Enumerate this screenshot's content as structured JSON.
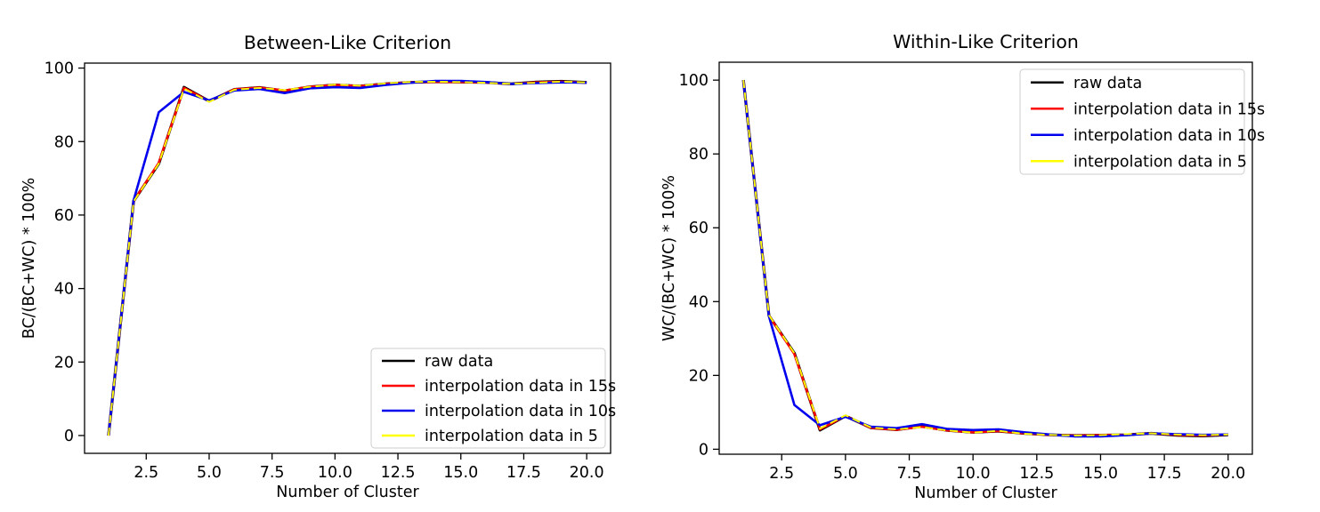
{
  "figure": {
    "background": "#ffffff",
    "text_color": "#000000",
    "spine_color": "#000000",
    "legend_border_color": "#cccccc",
    "legend_background": "#ffffff"
  },
  "chart_data": [
    {
      "type": "line",
      "title": "Between-Like Criterion",
      "xlabel": "Number of Cluster",
      "ylabel": "BC/(BC+WC) * 100%",
      "grid": false,
      "legend_position": "lower right",
      "x": [
        1,
        2,
        3,
        4,
        5,
        6,
        7,
        8,
        9,
        10,
        11,
        12,
        13,
        14,
        15,
        16,
        17,
        18,
        19,
        20
      ],
      "xlim": [
        0.05,
        20.95
      ],
      "ylim": [
        -4.85,
        101.35
      ],
      "xticks": [
        2.5,
        5.0,
        7.5,
        10.0,
        12.5,
        15.0,
        17.5,
        20.0
      ],
      "xtick_labels": [
        "2.5",
        "5.0",
        "7.5",
        "10.0",
        "12.5",
        "15.0",
        "17.5",
        "20.0"
      ],
      "yticks": [
        0,
        20,
        40,
        60,
        80,
        100
      ],
      "ytick_labels": [
        "0",
        "20",
        "40",
        "60",
        "80",
        "100"
      ],
      "series": [
        {
          "name": "raw data",
          "color": "#000000",
          "values": [
            0,
            63.8,
            74.0,
            94.8,
            91.0,
            94.2,
            94.7,
            93.8,
            94.9,
            95.4,
            95.1,
            95.7,
            96.1,
            96.3,
            96.2,
            96.1,
            95.7,
            96.2,
            96.4,
            96.1
          ]
        },
        {
          "name": "interpolation data in 15s",
          "color": "#ff0000",
          "values": [
            0,
            63.8,
            74.2,
            94.6,
            91.0,
            94.2,
            94.7,
            93.9,
            94.9,
            95.4,
            95.1,
            95.7,
            96.1,
            96.3,
            96.2,
            96.1,
            95.7,
            96.1,
            96.3,
            96.0
          ]
        },
        {
          "name": "interpolation data in 10s",
          "color": "#0000ee",
          "values": [
            0,
            64.0,
            88.0,
            93.5,
            91.2,
            93.9,
            94.3,
            93.2,
            94.5,
            94.8,
            94.6,
            95.4,
            96.0,
            96.5,
            96.5,
            96.2,
            95.7,
            95.9,
            96.1,
            96.0
          ]
        },
        {
          "name": "interpolation data in 5",
          "color": "#ffff00",
          "dash": [
            9,
            5
          ],
          "values": [
            0,
            63.7,
            74.0,
            94.4,
            90.8,
            94.1,
            94.6,
            94.0,
            94.9,
            95.5,
            95.2,
            95.8,
            96.2,
            96.3,
            96.2,
            96.0,
            95.7,
            96.0,
            96.3,
            96.1
          ]
        }
      ]
    },
    {
      "type": "line",
      "title": "Within-Like Criterion",
      "xlabel": "Number of Cluster",
      "ylabel": "WC/(BC+WC) * 100%",
      "grid": false,
      "legend_position": "upper right",
      "x": [
        1,
        2,
        3,
        4,
        5,
        6,
        7,
        8,
        9,
        10,
        11,
        12,
        13,
        14,
        15,
        16,
        17,
        18,
        19,
        20
      ],
      "xlim": [
        0.05,
        20.95
      ],
      "ylim": [
        -1.35,
        104.85
      ],
      "xticks": [
        2.5,
        5.0,
        7.5,
        10.0,
        12.5,
        15.0,
        17.5,
        20.0
      ],
      "xtick_labels": [
        "2.5",
        "5.0",
        "7.5",
        "10.0",
        "12.5",
        "15.0",
        "17.5",
        "20.0"
      ],
      "yticks": [
        0,
        20,
        40,
        60,
        80,
        100
      ],
      "ytick_labels": [
        "0",
        "20",
        "40",
        "60",
        "80",
        "100"
      ],
      "series": [
        {
          "name": "raw data",
          "color": "#000000",
          "values": [
            100,
            36.2,
            26.0,
            5.2,
            9.0,
            5.8,
            5.3,
            6.2,
            5.1,
            4.6,
            4.9,
            4.3,
            3.9,
            3.7,
            3.8,
            3.9,
            4.3,
            3.8,
            3.6,
            3.9
          ]
        },
        {
          "name": "interpolation data in 15s",
          "color": "#ff0000",
          "values": [
            100,
            36.2,
            25.8,
            5.4,
            9.0,
            5.8,
            5.3,
            6.1,
            5.1,
            4.6,
            4.9,
            4.3,
            3.9,
            3.7,
            3.8,
            3.9,
            4.3,
            3.9,
            3.7,
            4.0
          ]
        },
        {
          "name": "interpolation data in 10s",
          "color": "#0000ee",
          "values": [
            100,
            36.0,
            12.0,
            6.5,
            8.8,
            6.1,
            5.7,
            6.8,
            5.5,
            5.2,
            5.4,
            4.6,
            4.0,
            3.5,
            3.5,
            3.8,
            4.3,
            4.1,
            3.9,
            4.0
          ]
        },
        {
          "name": "interpolation data in 5",
          "color": "#ffff00",
          "dash": [
            9,
            5
          ],
          "values": [
            100,
            36.3,
            26.0,
            5.6,
            9.2,
            5.9,
            5.4,
            6.0,
            5.1,
            4.5,
            5.0,
            4.2,
            3.9,
            3.7,
            3.8,
            4.1,
            4.3,
            4.0,
            3.8,
            4.0
          ]
        }
      ]
    }
  ]
}
